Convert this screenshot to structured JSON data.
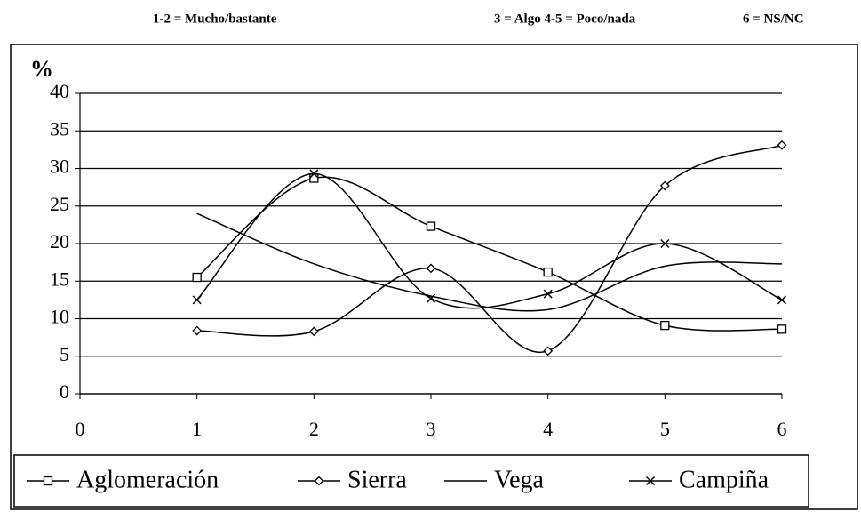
{
  "chart_data": {
    "type": "line",
    "smooth": true,
    "header": [
      "1-2 = Mucho/bastante",
      "3 = Algo 4-5 = Poco/nada",
      "6 = NS/NC"
    ],
    "y_label": "%",
    "x": [
      1,
      2,
      3,
      4,
      5,
      6
    ],
    "xlim": [
      0,
      6
    ],
    "xticks": [
      0,
      1,
      2,
      3,
      4,
      5,
      6
    ],
    "ylim": [
      0,
      40
    ],
    "yticks": [
      0,
      5,
      10,
      15,
      20,
      25,
      30,
      35,
      40
    ],
    "grid": true,
    "legend": "bottom",
    "series": [
      {
        "name": "Aglomeración",
        "color": "#000000",
        "marker": "square",
        "values": [
          15.5,
          28.7,
          22.3,
          16.2,
          9.1,
          8.6
        ]
      },
      {
        "name": "Sierra",
        "color": "#000000",
        "marker": "diamond",
        "values": [
          8.4,
          8.3,
          16.7,
          5.7,
          27.7,
          33.1
        ]
      },
      {
        "name": "Vega",
        "color": "#000000",
        "marker": "none",
        "values": [
          24,
          17.3,
          13,
          11.2,
          17,
          17.3
        ]
      },
      {
        "name": "Campiña",
        "color": "#000000",
        "marker": "x",
        "values": [
          12.5,
          29.3,
          12.7,
          13.3,
          20,
          12.5
        ]
      }
    ]
  }
}
